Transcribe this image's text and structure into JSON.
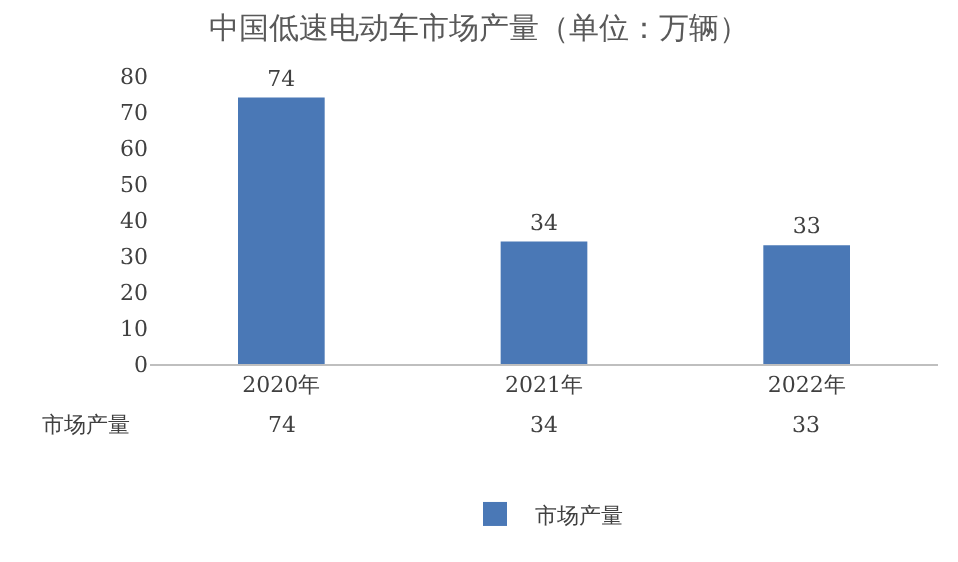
{
  "chart_data": {
    "type": "bar",
    "title": "中国低速电动车市场产量（单位：万辆）",
    "categories": [
      "2020年",
      "2021年",
      "2022年"
    ],
    "series": [
      {
        "name": "市场产量",
        "color": "#4a78b6",
        "values": [
          74,
          34,
          33
        ],
        "value_labels": [
          "74",
          "34",
          "33"
        ]
      }
    ],
    "ylim": [
      0,
      80
    ],
    "yticks": [
      0,
      10,
      20,
      30,
      40,
      50,
      60,
      70,
      80
    ],
    "annotations": [
      "74",
      "34",
      "33"
    ],
    "legend": "bottom",
    "grid": false
  }
}
